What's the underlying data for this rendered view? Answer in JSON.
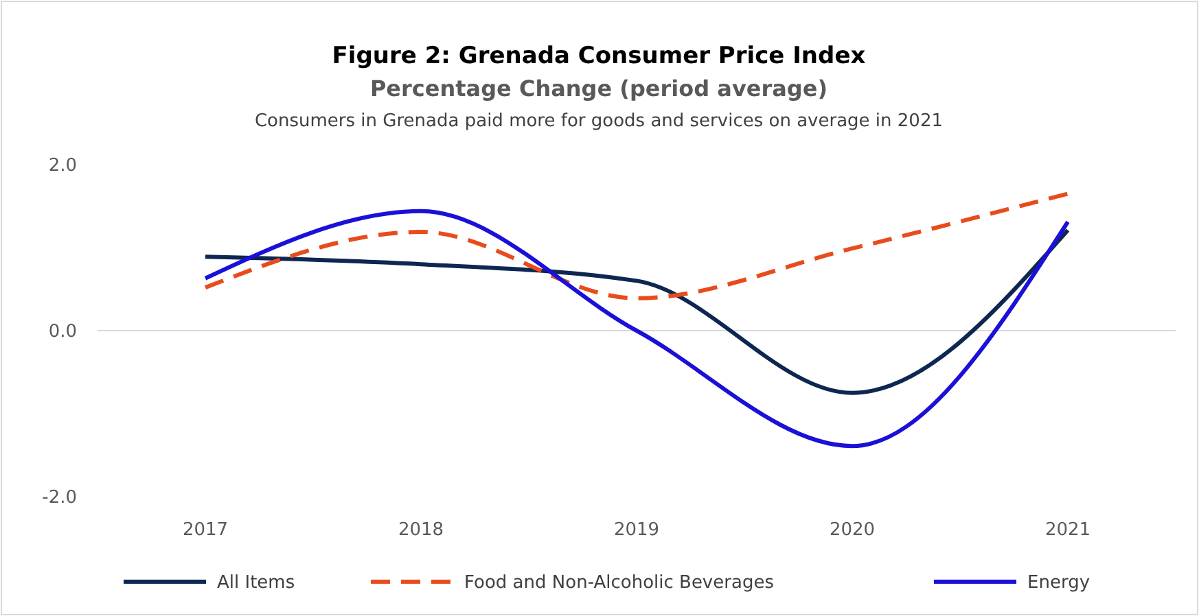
{
  "chart_data": {
    "type": "line",
    "title": "Figure 2: Grenada Consumer Price Index",
    "subtitle": "Percentage Change (period average)",
    "annotations": [
      "Consumers in Grenada paid more for goods and services on average in 2021"
    ],
    "categories": [
      "2017",
      "2018",
      "2019",
      "2020",
      "2021"
    ],
    "series": [
      {
        "name": "All Items",
        "color": "#0d2750",
        "values": [
          0.89,
          0.8,
          0.6,
          -0.75,
          1.21
        ]
      },
      {
        "name": "Food and Non-Alcoholic Beverages",
        "color": "#e84c1c",
        "line_style": "dashed",
        "values": [
          0.52,
          1.19,
          0.39,
          0.99,
          1.65
        ]
      },
      {
        "name": "Energy",
        "color": "#1a10d8",
        "values": [
          0.63,
          1.44,
          0.0,
          -1.39,
          1.31
        ]
      }
    ],
    "ylim": [
      -2,
      2
    ],
    "yticks": [
      {
        "value": 2,
        "label": "2.0"
      },
      {
        "value": 0,
        "label": "0.0"
      },
      {
        "value": -2,
        "label": "-2.0"
      }
    ],
    "ref_lines": [
      {
        "axis": "y",
        "value": 0,
        "color": "#d9d9d9"
      }
    ],
    "legend": "bottom",
    "marker": "none",
    "line_style": "solid"
  }
}
